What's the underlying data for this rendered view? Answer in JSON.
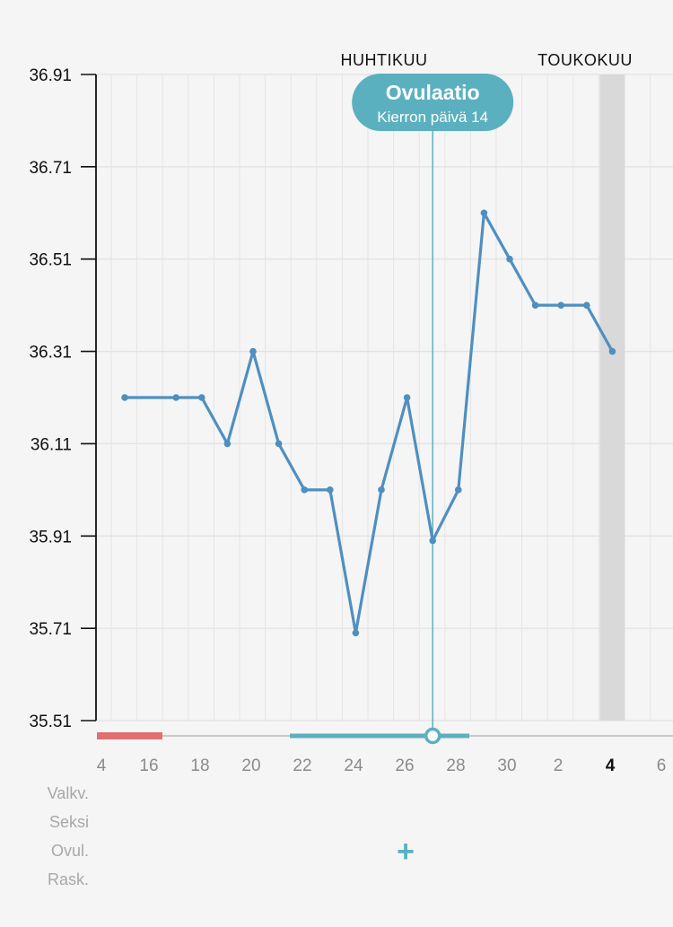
{
  "chart_data": {
    "type": "line",
    "y_ticks": [
      "36.91",
      "36.71",
      "36.51",
      "36.31",
      "36.11",
      "35.91",
      "35.71",
      "35.51"
    ],
    "ylim": [
      35.51,
      36.91
    ],
    "x_tick_labels": [
      "4",
      "16",
      "18",
      "20",
      "22",
      "24",
      "26",
      "28",
      "30",
      "2",
      "4",
      "6"
    ],
    "month_labels": [
      "HUHTIKUU",
      "TOUKOKUU"
    ],
    "today_label": "4",
    "series": [
      {
        "color": "#4f8fc0",
        "points": [
          {
            "date": "Apr 15",
            "value": 36.21
          },
          {
            "date": "Apr 17",
            "value": 36.21
          },
          {
            "date": "Apr 18",
            "value": 36.21
          },
          {
            "date": "Apr 19",
            "value": 36.11
          },
          {
            "date": "Apr 20",
            "value": 36.31
          },
          {
            "date": "Apr 21",
            "value": 36.11
          },
          {
            "date": "Apr 22",
            "value": 36.01
          },
          {
            "date": "Apr 23",
            "value": 36.01
          },
          {
            "date": "Apr 24",
            "value": 35.7
          },
          {
            "date": "Apr 25",
            "value": 36.01
          },
          {
            "date": "Apr 26",
            "value": 36.21
          },
          {
            "date": "Apr 27",
            "value": 35.9
          },
          {
            "date": "Apr 28",
            "value": 36.01
          },
          {
            "date": "Apr 29",
            "value": 36.61
          },
          {
            "date": "Apr 30",
            "value": 36.51
          },
          {
            "date": "May 1",
            "value": 36.41
          },
          {
            "date": "May 2",
            "value": 36.41
          },
          {
            "date": "May 3",
            "value": 36.41
          },
          {
            "date": "May 4",
            "value": 36.31
          }
        ]
      }
    ],
    "ovulation": {
      "title": "Ovulaatio",
      "subtitle": "Kierron päivä 14",
      "date": "Apr 27"
    },
    "period_bar_color": "#e07070",
    "fertile_bar_color": "#5bb0bf",
    "today_highlight_color": "#d9d9d9",
    "grid": true
  },
  "row_labels": [
    "Valkv.",
    "Seksi",
    "Ovul.",
    "Rask."
  ],
  "add_symbol": "+"
}
